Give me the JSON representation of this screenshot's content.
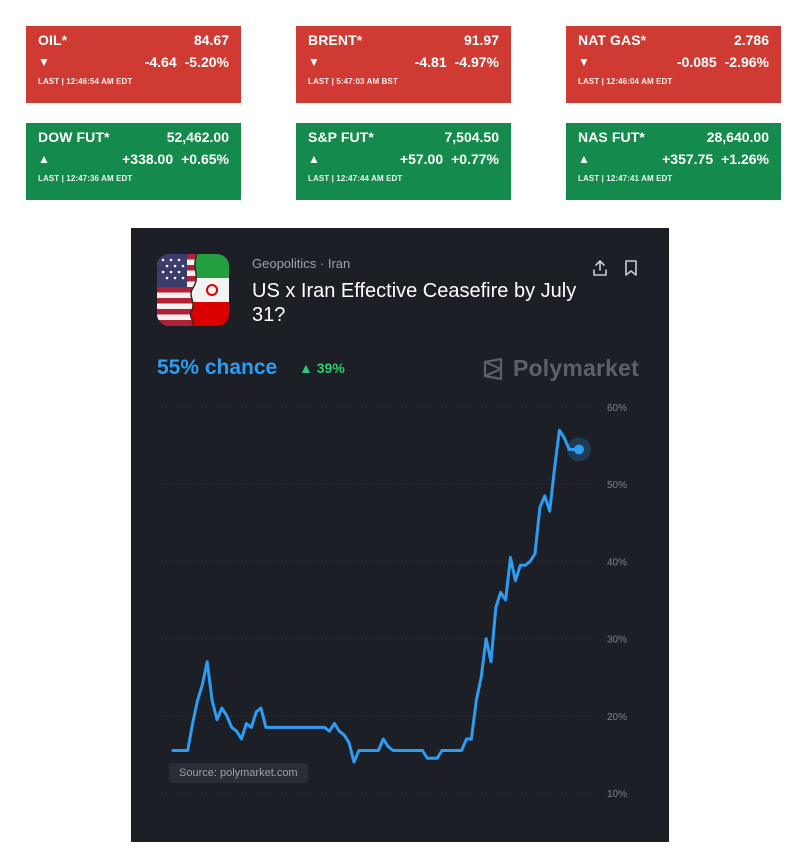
{
  "tickers": [
    {
      "name": "OIL*",
      "price": "84.67",
      "direction": "down",
      "arrow": "▼",
      "change": "-4.64",
      "pct": "-5.20%",
      "last": "LAST | 12:46:54 AM EDT"
    },
    {
      "name": "BRENT*",
      "price": "91.97",
      "direction": "down",
      "arrow": "▼",
      "change": "-4.81",
      "pct": "-4.97%",
      "last": "LAST | 5:47:03 AM BST"
    },
    {
      "name": "NAT GAS*",
      "price": "2.786",
      "direction": "down",
      "arrow": "▼",
      "change": "-0.085",
      "pct": "-2.96%",
      "last": "LAST | 12:46:04 AM EDT"
    },
    {
      "name": "DOW FUT*",
      "price": "52,462.00",
      "direction": "up",
      "arrow": "▲",
      "change": "+338.00",
      "pct": "+0.65%",
      "last": "LAST | 12:47:36 AM EDT"
    },
    {
      "name": "S&P FUT*",
      "price": "7,504.50",
      "direction": "up",
      "arrow": "▲",
      "change": "+57.00",
      "pct": "+0.77%",
      "last": "LAST | 12:47:44 AM EDT"
    },
    {
      "name": "NAS FUT*",
      "price": "28,640.00",
      "direction": "up",
      "arrow": "▲",
      "change": "+357.75",
      "pct": "+1.26%",
      "last": "LAST | 12:47:41 AM EDT"
    }
  ],
  "market": {
    "category": "Geopolitics · Iran",
    "title": "US x Iran Effective Ceasefire by July 31?",
    "chance": "55% chance",
    "delta": "▲ 39%",
    "brand": "Polymarket",
    "source": "Source: polymarket.com",
    "share_icon": "share-icon",
    "bookmark_icon": "bookmark-icon"
  },
  "colors": {
    "down": "#cf3b33",
    "up": "#148a4c",
    "card_bg": "#1c1f25",
    "line": "#2d9cf3",
    "positive": "#2ecc71"
  },
  "chart_data": {
    "type": "line",
    "title": "",
    "xlabel": "",
    "ylabel": "",
    "ylim": [
      10,
      60
    ],
    "yticks": [
      "60%",
      "50%",
      "40%",
      "30%",
      "20%",
      "10%"
    ],
    "ytick_values": [
      60,
      50,
      40,
      30,
      20,
      10
    ],
    "grid": true,
    "series": [
      {
        "values": [
          15.5,
          15.5,
          15.5,
          15.5,
          19,
          22,
          24,
          27,
          22,
          19.5,
          21,
          20,
          18.5,
          18,
          17,
          19,
          18.5,
          20.5,
          21,
          18.5,
          18.5,
          18.5,
          18.5,
          18.5,
          18.5,
          18.5,
          18.5,
          18.5,
          18.5,
          18.5,
          18.5,
          18.5,
          18,
          19,
          18,
          17.5,
          16.5,
          14,
          15.5,
          15.5,
          15.5,
          15.5,
          15.5,
          17,
          16,
          15.5,
          15.5,
          15.5,
          15.5,
          15.5,
          15.5,
          15.5,
          14.5,
          14.5,
          14.5,
          15.5,
          15.5,
          15.5,
          15.5,
          15.5,
          17,
          17,
          22,
          25,
          30,
          27,
          34,
          36,
          35,
          40.5,
          37.5,
          39.5,
          39.5,
          40,
          41,
          47,
          48.5,
          46.5,
          52,
          57,
          56,
          54.5,
          54.5,
          54.5
        ]
      }
    ]
  }
}
